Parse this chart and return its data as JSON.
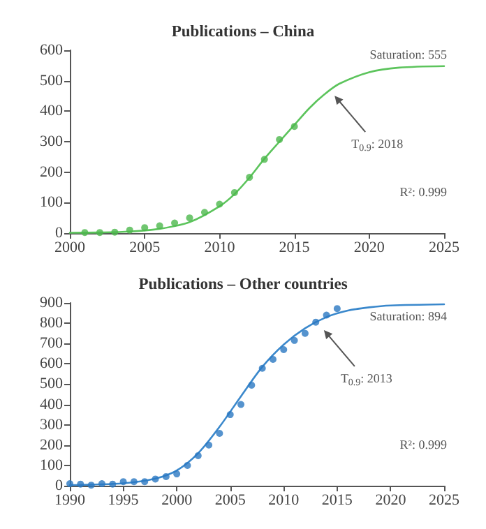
{
  "chart_data": [
    {
      "type": "scatter",
      "title": "Publications – China",
      "xlim": [
        2000,
        2025
      ],
      "xticks": [
        2000,
        2005,
        2010,
        2015,
        2020,
        2025
      ],
      "ylim": [
        0,
        600
      ],
      "yticks": [
        0,
        100,
        200,
        300,
        400,
        500,
        600
      ],
      "grid": false,
      "series": [
        {
          "marker": "circle",
          "color": "#4cb84c",
          "x": [
            2001,
            2002,
            2003,
            2004,
            2005,
            2006,
            2007,
            2008,
            2009,
            2010,
            2011,
            2012,
            2013,
            2014,
            2015
          ],
          "values": [
            2,
            2,
            3,
            10,
            18,
            24,
            33,
            50,
            68,
            95,
            133,
            183,
            242,
            307,
            350
          ]
        },
        {
          "type": "line",
          "marker": "none",
          "line_style": "solid",
          "color": "#5cc45c",
          "x": [
            2000,
            2002,
            2004,
            2006,
            2008,
            2010,
            2011,
            2012,
            2013,
            2014,
            2015,
            2016,
            2017,
            2018,
            2020,
            2022,
            2025
          ],
          "values": [
            1,
            2,
            5,
            14,
            36,
            88,
            128,
            182,
            244,
            300,
            355,
            410,
            455,
            490,
            528,
            543,
            548
          ]
        }
      ],
      "annotations": [
        "Saturation: 555",
        {
          "text": "T$_{0.9}$: 2018",
          "x": 2017.5,
          "y": 460
        },
        "R²: 0.999"
      ]
    },
    {
      "type": "scatter",
      "title": "Publications – Other countries",
      "xlim": [
        1990,
        2025
      ],
      "xticks": [
        1990,
        1995,
        2000,
        2005,
        2010,
        2015,
        2020,
        2025
      ],
      "ylim": [
        0,
        900
      ],
      "yticks": [
        0,
        100,
        200,
        300,
        400,
        500,
        600,
        700,
        800,
        900
      ],
      "grid": false,
      "series": [
        {
          "marker": "circle",
          "color": "#2a78c2",
          "x": [
            1990,
            1991,
            1992,
            1993,
            1994,
            1995,
            1996,
            1997,
            1998,
            1999,
            2000,
            2001,
            2002,
            2003,
            2004,
            2005,
            2006,
            2007,
            2008,
            2009,
            2010,
            2011,
            2012,
            2013,
            2014,
            2015
          ],
          "values": [
            10,
            8,
            3,
            10,
            8,
            20,
            20,
            20,
            33,
            45,
            58,
            100,
            148,
            200,
            258,
            350,
            400,
            495,
            578,
            622,
            670,
            715,
            750,
            805,
            840,
            872
          ]
        },
        {
          "type": "line",
          "marker": "none",
          "line_style": "solid",
          "color": "#3a88cc",
          "x": [
            1990,
            1995,
            1998,
            2000,
            2002,
            2004,
            2006,
            2008,
            2010,
            2012,
            2014,
            2016,
            2018,
            2020,
            2025
          ],
          "values": [
            3,
            12,
            35,
            75,
            160,
            290,
            440,
            585,
            695,
            775,
            830,
            862,
            878,
            887,
            893
          ]
        }
      ],
      "annotations": [
        "Saturation: 894",
        {
          "text": "T$_{0.9}$: 2013",
          "x": 2013.5,
          "y": 780
        },
        "R²: 0.999"
      ]
    }
  ]
}
